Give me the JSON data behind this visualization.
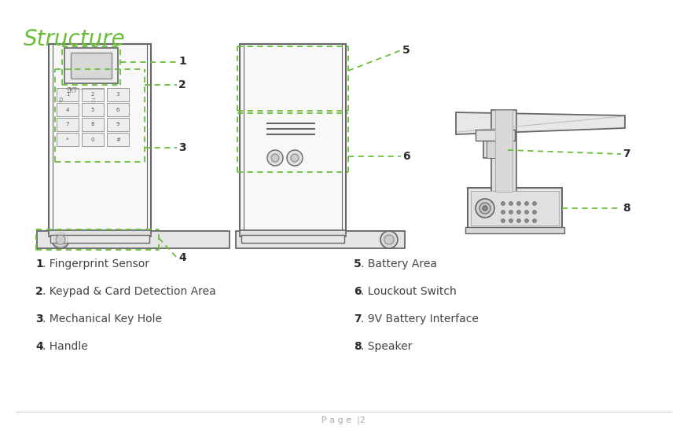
{
  "title": "Structure",
  "title_color": "#6abf3a",
  "title_fontsize": 20,
  "background_color": "#ffffff",
  "page_label": "P a g e  |2",
  "items_left": [
    {
      "num": "1",
      "text": ". Fingerprint Sensor"
    },
    {
      "num": "2",
      "text": ". Keypad & Card Detection Area"
    },
    {
      "num": "3",
      "text": ". Mechanical Key Hole"
    },
    {
      "num": "4",
      "text": ". Handle"
    }
  ],
  "items_right": [
    {
      "num": "5",
      "text": ". Battery Area"
    },
    {
      "num": "6",
      "text": ". Louckout Switch"
    },
    {
      "num": "7",
      "text": ". 9V Battery Interface"
    },
    {
      "num": "8",
      "text": ". Speaker"
    }
  ],
  "green_color": "#6abf3a",
  "dark_color": "#2a2a2a",
  "gray_color": "#888888",
  "line_color": "#555555",
  "dashed_green": "#6abf3a",
  "device_line": "#666666",
  "device_fill": "#f8f8f8",
  "device_fill2": "#eeeeee"
}
